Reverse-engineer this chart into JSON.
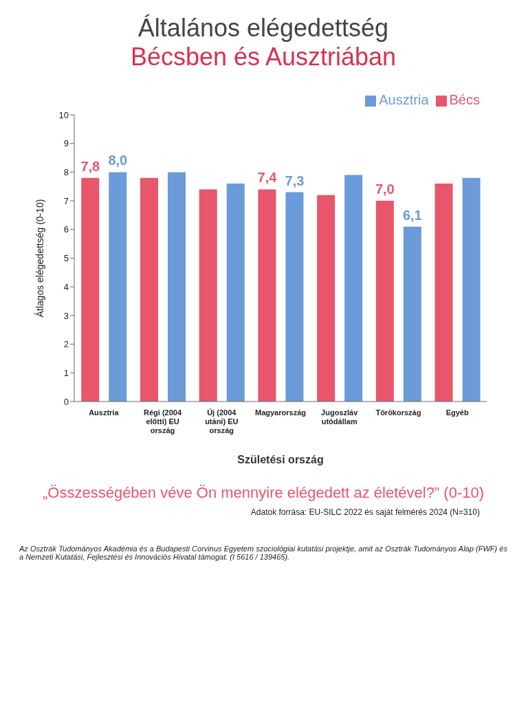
{
  "chart_data": {
    "type": "bar",
    "title": "Általános elégedettség",
    "subtitle": "Bécsben és Ausztriában",
    "xlabel": "Születési ország",
    "ylabel": "Átlagos elégedettség (0-10)",
    "categories": [
      "Ausztria",
      "Régi (2004 előtti) EU ország",
      "Új (2004 utáni) EU ország",
      "Magyarország",
      "Jugoszláv utódállam",
      "Törökország",
      "Egyéb"
    ],
    "series": [
      {
        "name": "Bécs",
        "color": "#e8566b",
        "values": [
          7.8,
          7.8,
          7.4,
          7.4,
          7.2,
          7.0,
          7.6
        ],
        "value_labels": [
          "7,8",
          null,
          null,
          "7,4",
          null,
          "7,0",
          null
        ]
      },
      {
        "name": "Ausztria",
        "color": "#6b9bd8",
        "values": [
          8.0,
          8.0,
          7.6,
          7.3,
          7.9,
          6.1,
          7.8
        ],
        "value_labels": [
          "8,0",
          null,
          null,
          "7,3",
          null,
          "6,1",
          null
        ]
      }
    ],
    "ylim": [
      0,
      10
    ],
    "yticks": [
      0,
      1,
      2,
      3,
      4,
      5,
      6,
      7,
      8,
      9,
      10
    ],
    "legend": "top right",
    "annotations": [
      "„Összességében véve Ön mennyire elégedett az életével?” (0-10)",
      "Adatok forrása: EU-SILC 2022 és saját felmérés 2024 (N=310)",
      "Az Osztrák Tudományos Akadémia és a Budapesti Corvinus Egyetem szociológiai kutatási projektje, amit az Osztrák Tudományos Alap (FWF) és a Nemzeti Kutatási, Fejlesztési és Innovációs Hivatal támogat. (I 5616 / 139465)."
    ]
  }
}
